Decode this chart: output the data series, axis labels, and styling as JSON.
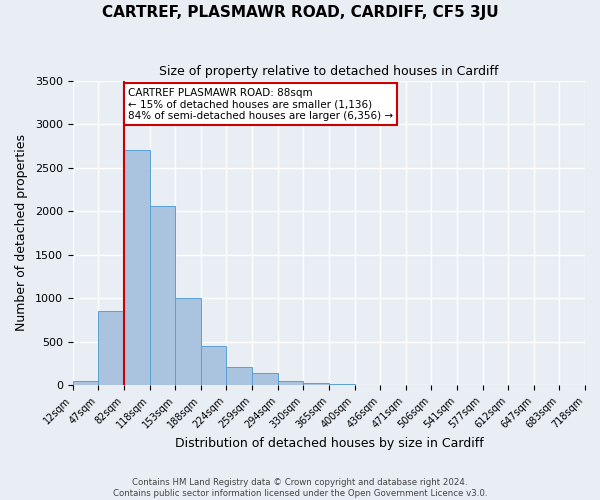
{
  "title": "CARTREF, PLASMAWR ROAD, CARDIFF, CF5 3JU",
  "subtitle": "Size of property relative to detached houses in Cardiff",
  "xlabel": "Distribution of detached houses by size in Cardiff",
  "ylabel": "Number of detached properties",
  "bar_values": [
    55,
    850,
    2700,
    2060,
    1005,
    455,
    210,
    145,
    55,
    25,
    10,
    0,
    0,
    0,
    0,
    0,
    0,
    0,
    0,
    0
  ],
  "categories": [
    "12sqm",
    "47sqm",
    "82sqm",
    "118sqm",
    "153sqm",
    "188sqm",
    "224sqm",
    "259sqm",
    "294sqm",
    "330sqm",
    "365sqm",
    "400sqm",
    "436sqm",
    "471sqm",
    "506sqm",
    "541sqm",
    "577sqm",
    "612sqm",
    "647sqm",
    "683sqm",
    "718sqm"
  ],
  "bar_color": "#aac4e0",
  "bar_edge_color": "#5a9fd4",
  "annotation_line1": "CARTREF PLASMAWR ROAD: 88sqm",
  "annotation_line2": "← 15% of detached houses are smaller (1,136)",
  "annotation_line3": "84% of semi-detached houses are larger (6,356) →",
  "vline_color": "#cc0000",
  "annotation_box_edge": "#cc0000",
  "ylim": [
    0,
    3500
  ],
  "yticks": [
    0,
    500,
    1000,
    1500,
    2000,
    2500,
    3000,
    3500
  ],
  "vline_x": 2.0,
  "footnote1": "Contains HM Land Registry data © Crown copyright and database right 2024.",
  "footnote2": "Contains public sector information licensed under the Open Government Licence v3.0.",
  "bg_color": "#e8eef4",
  "plot_bg_color": "#e8eef4",
  "grid_color": "#ffffff"
}
